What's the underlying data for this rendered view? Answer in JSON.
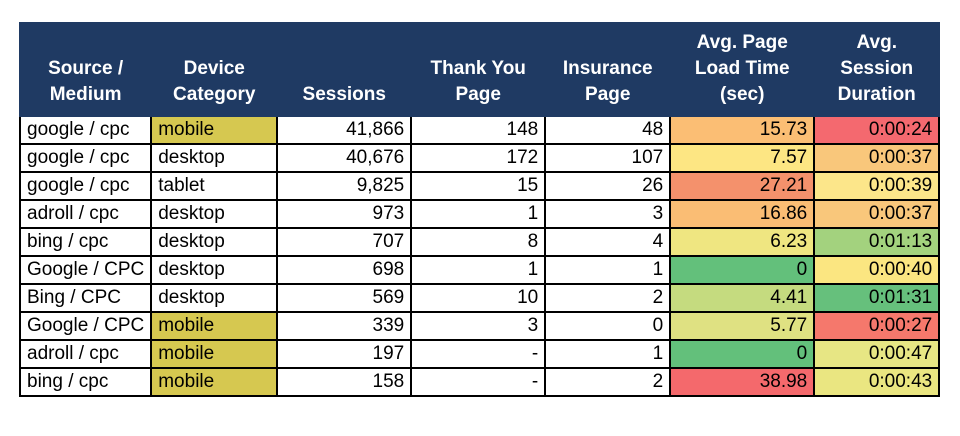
{
  "colors": {
    "header_bg": "#1f3a63",
    "header_text": "#ffffff",
    "grid_border": "#000000",
    "highlight_yellow": "#d6c850",
    "scale_green": "#63c07b",
    "scale_yellow": "#fde683",
    "scale_orange": "#fbbe74",
    "scale_red": "#f4696c"
  },
  "table": {
    "columns": [
      {
        "id": "source-medium",
        "label": "Source /\nMedium",
        "align": "left",
        "width": 130
      },
      {
        "id": "device-category",
        "label": "Device\nCategory",
        "align": "left",
        "width": 126
      },
      {
        "id": "sessions",
        "label": "Sessions",
        "align": "right",
        "width": 134
      },
      {
        "id": "thank-you-page",
        "label": "Thank You\nPage",
        "align": "right",
        "width": 134
      },
      {
        "id": "insurance-page",
        "label": "Insurance\nPage",
        "align": "right",
        "width": 125
      },
      {
        "id": "avg-page-load",
        "label": "Avg. Page\nLoad Time\n(sec)",
        "align": "right",
        "width": 144
      },
      {
        "id": "avg-session-dur",
        "label": "Avg.\nSession\nDuration",
        "align": "right",
        "width": 125
      }
    ],
    "rows": [
      {
        "cells": [
          "google / cpc",
          "mobile",
          "41,866",
          "148",
          "48",
          "15.73",
          "0:00:24"
        ],
        "cell_colors": [
          null,
          "#d6c850",
          null,
          null,
          null,
          "#fbbe74",
          "#f4696f"
        ]
      },
      {
        "cells": [
          "google / cpc",
          "desktop",
          "40,676",
          "172",
          "107",
          "7.57",
          "0:00:37"
        ],
        "cell_colors": [
          null,
          null,
          null,
          null,
          null,
          "#fde683",
          "#f9c77b"
        ]
      },
      {
        "cells": [
          "google / cpc",
          "tablet",
          "9,825",
          "15",
          "26",
          "27.21",
          "0:00:39"
        ],
        "cell_colors": [
          null,
          null,
          null,
          null,
          null,
          "#f4916c",
          "#fce68a"
        ]
      },
      {
        "cells": [
          "adroll / cpc",
          "desktop",
          "973",
          "1",
          "3",
          "16.86",
          "0:00:37"
        ],
        "cell_colors": [
          null,
          null,
          null,
          null,
          null,
          "#fabd74",
          "#f9c77b"
        ]
      },
      {
        "cells": [
          "bing / cpc",
          "desktop",
          "707",
          "8",
          "4",
          "6.23",
          "0:01:13"
        ],
        "cell_colors": [
          null,
          null,
          null,
          null,
          null,
          "#efe681",
          "#a3d27e"
        ]
      },
      {
        "cells": [
          "Google / CPC",
          "desktop",
          "698",
          "1",
          "1",
          "0",
          "0:00:40"
        ],
        "cell_colors": [
          null,
          null,
          null,
          null,
          null,
          "#63c07b",
          "#fbe681"
        ]
      },
      {
        "cells": [
          "Bing / CPC",
          "desktop",
          "569",
          "10",
          "2",
          "4.41",
          "0:01:31"
        ],
        "cell_colors": [
          null,
          null,
          null,
          null,
          null,
          "#c5db7f",
          "#66c07c"
        ]
      },
      {
        "cells": [
          "Google / CPC",
          "mobile",
          "339",
          "3",
          "0",
          "5.77",
          "0:00:27"
        ],
        "cell_colors": [
          null,
          "#d6c850",
          null,
          null,
          null,
          "#dfe182",
          "#f5786c"
        ]
      },
      {
        "cells": [
          "adroll / cpc",
          "mobile",
          "197",
          "-",
          "1",
          "0",
          "0:00:47"
        ],
        "cell_colors": [
          null,
          "#d6c850",
          null,
          null,
          null,
          "#63c07b",
          "#e7e684"
        ]
      },
      {
        "cells": [
          "bing / cpc",
          "mobile",
          "158",
          "-",
          "2",
          "38.98",
          "0:00:43"
        ],
        "cell_colors": [
          null,
          "#d6c850",
          null,
          null,
          null,
          "#f4696c",
          "#eae681"
        ]
      }
    ]
  },
  "chart_data": {
    "type": "table",
    "title": "",
    "columns": [
      "Source / Medium",
      "Device Category",
      "Sessions",
      "Thank You Page",
      "Insurance Page",
      "Avg. Page Load Time (sec)",
      "Avg. Session Duration"
    ],
    "rows": [
      [
        "google / cpc",
        "mobile",
        41866,
        148,
        48,
        15.73,
        "0:00:24"
      ],
      [
        "google / cpc",
        "desktop",
        40676,
        172,
        107,
        7.57,
        "0:00:37"
      ],
      [
        "google / cpc",
        "tablet",
        9825,
        15,
        26,
        27.21,
        "0:00:39"
      ],
      [
        "adroll / cpc",
        "desktop",
        973,
        1,
        3,
        16.86,
        "0:00:37"
      ],
      [
        "bing / cpc",
        "desktop",
        707,
        8,
        4,
        6.23,
        "0:01:13"
      ],
      [
        "Google / CPC",
        "desktop",
        698,
        1,
        1,
        0,
        "0:00:40"
      ],
      [
        "Bing / CPC",
        "desktop",
        569,
        10,
        2,
        4.41,
        "0:01:31"
      ],
      [
        "Google / CPC",
        "mobile",
        339,
        3,
        0,
        5.77,
        "0:00:27"
      ],
      [
        "adroll / cpc",
        "mobile",
        197,
        null,
        1,
        0,
        "0:00:47"
      ],
      [
        "bing / cpc",
        "mobile",
        158,
        null,
        2,
        38.98,
        "0:00:43"
      ]
    ],
    "notes": "Conditional formatting: green=good, yellow=mid, red=bad on load time and session duration columns; mobile device cells highlighted dark yellow"
  }
}
